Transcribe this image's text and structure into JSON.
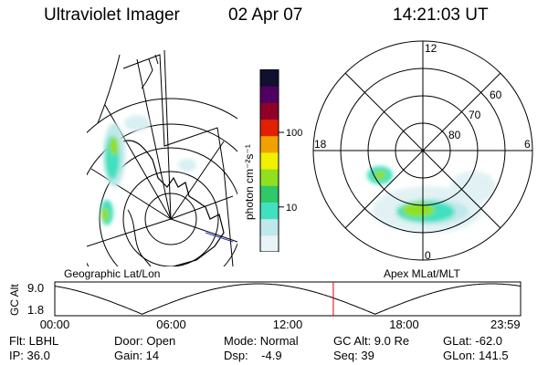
{
  "header": {
    "instrument": "Ultraviolet Imager",
    "date": "02 Apr 07",
    "time": "14:21:03 UT"
  },
  "colorbar": {
    "unit_label": "photon cm⁻²s⁻¹",
    "ticks": [
      {
        "label": "100",
        "value": 100
      },
      {
        "label": "10",
        "value": 10
      }
    ],
    "range": [
      2.5,
      700
    ],
    "scale": "log",
    "colors": [
      "#e8f4f6",
      "#bfe8ea",
      "#40e0c0",
      "#30c868",
      "#90e020",
      "#f0f000",
      "#f0a000",
      "#e02000",
      "#900028",
      "#500060",
      "#101030"
    ]
  },
  "geo_map": {
    "label": "Geographic Lat/Lon"
  },
  "apex_map": {
    "label": "Apex MLat/MLT",
    "mlt_labels": [
      "12",
      "18",
      "6",
      "0"
    ],
    "lat_labels": [
      "60",
      "70",
      "80"
    ]
  },
  "timeline": {
    "ylabel": "GC Alt",
    "y_ticks": [
      "9.0",
      "1.8"
    ],
    "x_ticks": [
      "00:00",
      "06:00",
      "12:00",
      "18:00",
      "23:59"
    ],
    "current_time_hours": 14.35,
    "marker_color": "#e00000"
  },
  "info": {
    "filter": "Flt: LBHL",
    "ip": "IP: 36.0",
    "door": "Door: Open",
    "gain": "Gain: 14",
    "mode": "Mode: Normal",
    "dsp": "Dsp:    -4.9",
    "gc_alt": "GC Alt: 9.0 Re",
    "seq": "Seq: 39",
    "glat": "GLat: -62.0",
    "glon": "GLon: 141.5"
  }
}
